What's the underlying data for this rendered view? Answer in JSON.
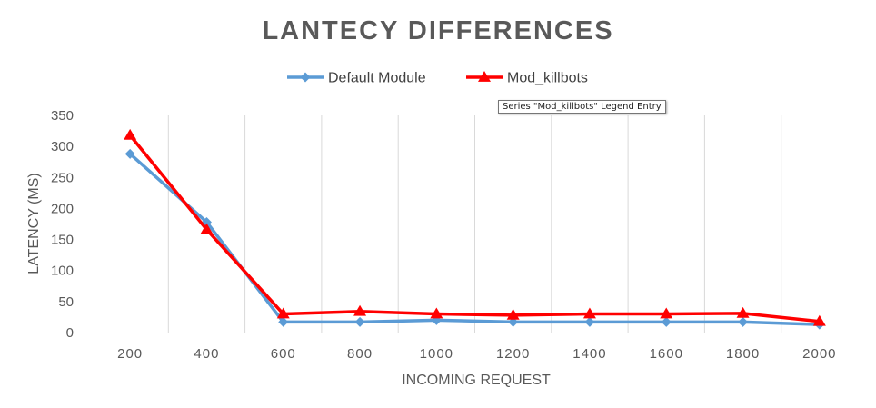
{
  "chart_data": {
    "type": "line",
    "title": "LANTECY DIFFERENCES",
    "xlabel": "INCOMING REQUEST",
    "ylabel": "LATENCY (MS)",
    "categories": [
      "200",
      "400",
      "600",
      "800",
      "1000",
      "1200",
      "1400",
      "1600",
      "1800",
      "2000"
    ],
    "ylim": [
      0,
      350
    ],
    "yticks": [
      "0",
      "50",
      "100",
      "150",
      "200",
      "250",
      "300",
      "350"
    ],
    "legend_position": "top",
    "series": [
      {
        "name": "Default Module",
        "color": "#5b9bd5",
        "marker": "diamond",
        "values": [
          288,
          178,
          17,
          17,
          20,
          17,
          17,
          17,
          17,
          13
        ]
      },
      {
        "name": "Mod_killbots",
        "color": "#ff0000",
        "marker": "triangle",
        "values": [
          318,
          166,
          30,
          34,
          30,
          28,
          30,
          30,
          31,
          18
        ]
      }
    ],
    "grid": "vertical"
  },
  "tooltip": {
    "text": "Series \"Mod_killbots\" Legend Entry"
  }
}
